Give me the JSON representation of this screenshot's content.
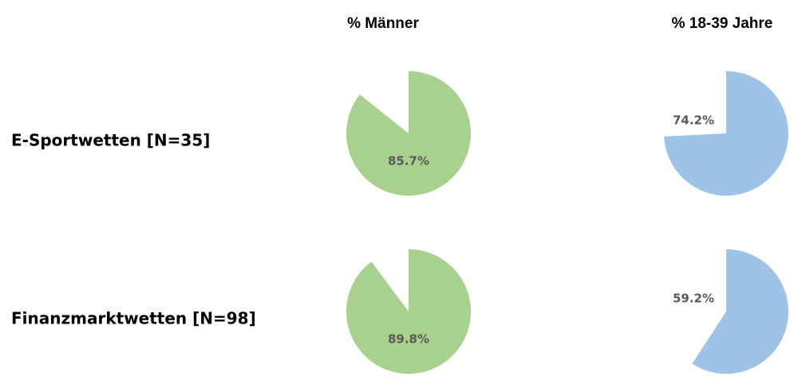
{
  "chart_data": {
    "type": "pie",
    "categories": [
      "E-Sportwetten [N=35]",
      "Finanzmarktwetten [N=98]"
    ],
    "series": [
      {
        "name": "% Männer",
        "color": "#a9d18e",
        "values": [
          85.7,
          89.8
        ],
        "value_labels": [
          "85.7%",
          "89.8%"
        ]
      },
      {
        "name": "% 18-39 Jahre",
        "color": "#9dc3e6",
        "values": [
          74.2,
          59.2
        ],
        "value_labels": [
          "74.2%",
          "59.2%"
        ]
      }
    ]
  }
}
